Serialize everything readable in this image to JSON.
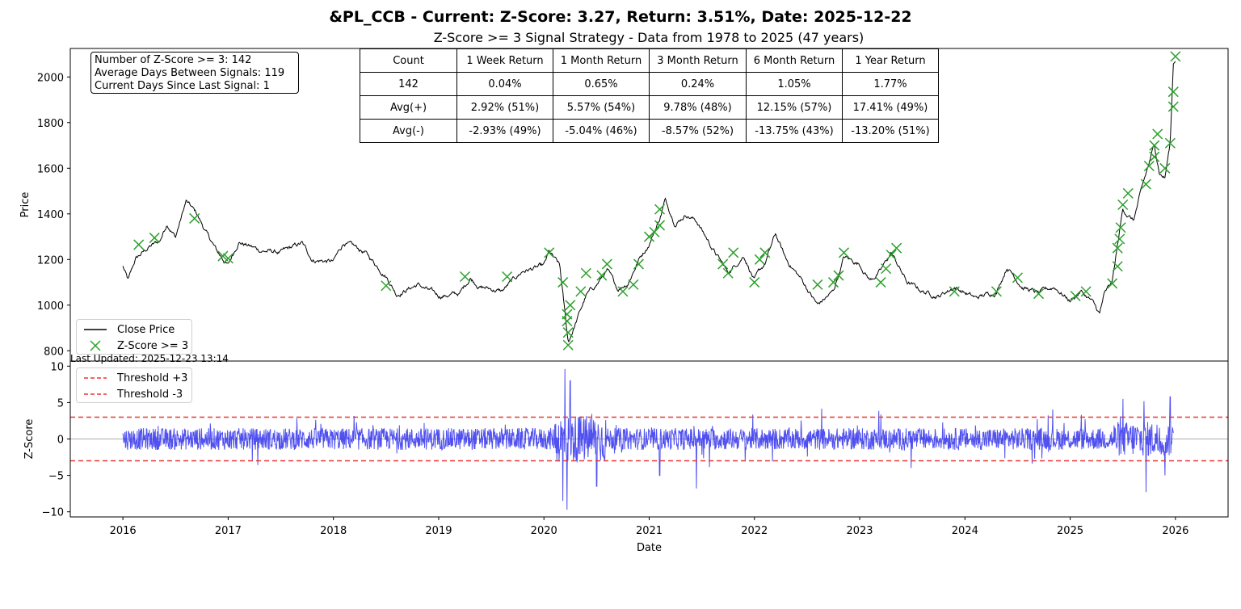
{
  "title": "&PL_CCB - Current: Z-Score: 3.27, Return: 3.51%, Date: 2025-12-22",
  "subtitle": "Z-Score >= 3 Signal Strategy - Data from 1978 to 2025 (47 years)",
  "stats_box": {
    "line1": "Number of Z-Score >= 3: 142",
    "line2": "Average Days Between Signals: 119",
    "line3": "Current Days Since Last Signal: 1"
  },
  "returns_table": {
    "headers": [
      "Count",
      "1 Week Return",
      "1 Month Return",
      "3 Month Return",
      "6 Month Return",
      "1 Year Return"
    ],
    "rows": [
      [
        "142",
        "0.04%",
        "0.65%",
        "0.24%",
        "1.05%",
        "1.77%"
      ],
      [
        "Avg(+)",
        "2.92% (51%)",
        "5.57% (54%)",
        "9.78% (48%)",
        "12.15% (57%)",
        "17.41% (49%)"
      ],
      [
        "Avg(-)",
        "-2.93% (49%)",
        "-5.04% (46%)",
        "-8.57% (52%)",
        "-13.75% (43%)",
        "-13.20% (51%)"
      ]
    ]
  },
  "last_updated": "Last Updated: 2025-12-23 13:14",
  "colors": {
    "price": "#000000",
    "signal": "#2ca02c",
    "zscore": "#3333ee",
    "threshold": "#ee3333",
    "zero": "#bbbbbb"
  },
  "chart_data": [
    {
      "type": "line",
      "ylabel": "Price",
      "xlim": [
        2015.5,
        2026.5
      ],
      "ylim": [
        755,
        2125
      ],
      "yticks": [
        800,
        1000,
        1200,
        1400,
        1600,
        1800,
        2000
      ],
      "legend": [
        "Close Price",
        "Z-Score >= 3"
      ],
      "legend_position": "lower-left",
      "price_anchors": [
        [
          2016.0,
          1170
        ],
        [
          2016.05,
          1105
        ],
        [
          2016.12,
          1200
        ],
        [
          2016.25,
          1255
        ],
        [
          2016.35,
          1280
        ],
        [
          2016.42,
          1360
        ],
        [
          2016.5,
          1300
        ],
        [
          2016.6,
          1455
        ],
        [
          2016.7,
          1400
        ],
        [
          2016.8,
          1310
        ],
        [
          2016.9,
          1230
        ],
        [
          2017.0,
          1175
        ],
        [
          2017.1,
          1280
        ],
        [
          2017.2,
          1260
        ],
        [
          2017.3,
          1240
        ],
        [
          2017.5,
          1230
        ],
        [
          2017.7,
          1270
        ],
        [
          2017.8,
          1200
        ],
        [
          2018.0,
          1190
        ],
        [
          2018.1,
          1275
        ],
        [
          2018.3,
          1230
        ],
        [
          2018.5,
          1130
        ],
        [
          2018.6,
          1050
        ],
        [
          2018.8,
          1090
        ],
        [
          2019.0,
          1040
        ],
        [
          2019.2,
          1050
        ],
        [
          2019.3,
          1120
        ],
        [
          2019.4,
          1080
        ],
        [
          2019.6,
          1060
        ],
        [
          2019.8,
          1150
        ],
        [
          2020.0,
          1170
        ],
        [
          2020.05,
          1230
        ],
        [
          2020.15,
          1170
        ],
        [
          2020.2,
          960
        ],
        [
          2020.23,
          835
        ],
        [
          2020.3,
          920
        ],
        [
          2020.4,
          1040
        ],
        [
          2020.5,
          1090
        ],
        [
          2020.6,
          1150
        ],
        [
          2020.7,
          1070
        ],
        [
          2020.8,
          1100
        ],
        [
          2020.9,
          1200
        ],
        [
          2021.0,
          1270
        ],
        [
          2021.1,
          1380
        ],
        [
          2021.15,
          1460
        ],
        [
          2021.25,
          1360
        ],
        [
          2021.35,
          1400
        ],
        [
          2021.45,
          1370
        ],
        [
          2021.6,
          1250
        ],
        [
          2021.75,
          1140
        ],
        [
          2021.9,
          1220
        ],
        [
          2022.0,
          1110
        ],
        [
          2022.1,
          1180
        ],
        [
          2022.2,
          1310
        ],
        [
          2022.3,
          1200
        ],
        [
          2022.45,
          1110
        ],
        [
          2022.6,
          1000
        ],
        [
          2022.75,
          1060
        ],
        [
          2022.85,
          1210
        ],
        [
          2023.0,
          1180
        ],
        [
          2023.1,
          1110
        ],
        [
          2023.2,
          1150
        ],
        [
          2023.3,
          1230
        ],
        [
          2023.45,
          1100
        ],
        [
          2023.6,
          1060
        ],
        [
          2023.75,
          1040
        ],
        [
          2023.9,
          1080
        ],
        [
          2024.1,
          1030
        ],
        [
          2024.3,
          1060
        ],
        [
          2024.4,
          1170
        ],
        [
          2024.55,
          1080
        ],
        [
          2024.7,
          1050
        ],
        [
          2024.85,
          1080
        ],
        [
          2025.0,
          1020
        ],
        [
          2025.1,
          1060
        ],
        [
          2025.2,
          1020
        ],
        [
          2025.28,
          960
        ],
        [
          2025.32,
          1040
        ],
        [
          2025.4,
          1100
        ],
        [
          2025.45,
          1260
        ],
        [
          2025.5,
          1420
        ],
        [
          2025.6,
          1370
        ],
        [
          2025.7,
          1540
        ],
        [
          2025.8,
          1700
        ],
        [
          2025.85,
          1580
        ],
        [
          2025.9,
          1560
        ],
        [
          2025.95,
          1710
        ],
        [
          2025.98,
          2060
        ],
        [
          2026.0,
          2080
        ]
      ],
      "signals": [
        [
          2016.15,
          1265
        ],
        [
          2016.3,
          1295
        ],
        [
          2016.68,
          1380
        ],
        [
          2016.95,
          1215
        ],
        [
          2017.0,
          1205
        ],
        [
          2018.5,
          1085
        ],
        [
          2019.25,
          1125
        ],
        [
          2019.65,
          1125
        ],
        [
          2020.05,
          1230
        ],
        [
          2020.18,
          1100
        ],
        [
          2020.22,
          960
        ],
        [
          2020.22,
          930
        ],
        [
          2020.23,
          880
        ],
        [
          2020.23,
          825
        ],
        [
          2020.25,
          1000
        ],
        [
          2020.35,
          1060
        ],
        [
          2020.4,
          1140
        ],
        [
          2020.55,
          1130
        ],
        [
          2020.6,
          1180
        ],
        [
          2020.75,
          1060
        ],
        [
          2020.85,
          1090
        ],
        [
          2020.9,
          1180
        ],
        [
          2021.0,
          1300
        ],
        [
          2021.05,
          1320
        ],
        [
          2021.1,
          1350
        ],
        [
          2021.1,
          1420
        ],
        [
          2021.7,
          1180
        ],
        [
          2021.75,
          1140
        ],
        [
          2021.8,
          1230
        ],
        [
          2022.0,
          1100
        ],
        [
          2022.05,
          1200
        ],
        [
          2022.1,
          1230
        ],
        [
          2022.6,
          1090
        ],
        [
          2022.75,
          1100
        ],
        [
          2022.8,
          1130
        ],
        [
          2022.85,
          1230
        ],
        [
          2023.2,
          1100
        ],
        [
          2023.25,
          1160
        ],
        [
          2023.3,
          1220
        ],
        [
          2023.35,
          1250
        ],
        [
          2023.9,
          1060
        ],
        [
          2024.3,
          1060
        ],
        [
          2024.5,
          1120
        ],
        [
          2024.7,
          1050
        ],
        [
          2025.05,
          1040
        ],
        [
          2025.15,
          1060
        ],
        [
          2025.4,
          1095
        ],
        [
          2025.45,
          1170
        ],
        [
          2025.45,
          1250
        ],
        [
          2025.47,
          1290
        ],
        [
          2025.48,
          1340
        ],
        [
          2025.5,
          1440
        ],
        [
          2025.55,
          1490
        ],
        [
          2025.72,
          1530
        ],
        [
          2025.75,
          1610
        ],
        [
          2025.8,
          1650
        ],
        [
          2025.8,
          1700
        ],
        [
          2025.83,
          1750
        ],
        [
          2025.9,
          1600
        ],
        [
          2025.95,
          1710
        ],
        [
          2025.98,
          1870
        ],
        [
          2025.98,
          1935
        ],
        [
          2026.0,
          2090
        ]
      ]
    },
    {
      "type": "line",
      "xlabel": "Date",
      "ylabel": "Z-Score",
      "xlim": [
        2015.5,
        2026.5
      ],
      "ylim": [
        -10.7,
        10.7
      ],
      "xticks": [
        2016,
        2017,
        2018,
        2019,
        2020,
        2021,
        2022,
        2023,
        2024,
        2025,
        2026
      ],
      "yticks": [
        -10,
        -5,
        0,
        5,
        10
      ],
      "thresholds": [
        3,
        -3
      ],
      "legend": [
        "Threshold +3",
        "Threshold -3"
      ],
      "legend_position": "top-left",
      "z_range": [
        -9.8,
        9.6
      ],
      "z_spikes": [
        [
          2020.2,
          9.6
        ],
        [
          2020.22,
          -9.7
        ],
        [
          2020.25,
          8.0
        ],
        [
          2020.18,
          -8.5
        ],
        [
          2020.5,
          6.0
        ],
        [
          2020.5,
          -6.5
        ],
        [
          2021.1,
          6.0
        ],
        [
          2021.1,
          -5.0
        ],
        [
          2021.45,
          -6.8
        ],
        [
          2025.5,
          5.5
        ],
        [
          2025.7,
          5.2
        ],
        [
          2025.72,
          -7.3
        ],
        [
          2025.95,
          5.8
        ],
        [
          2025.9,
          -5.0
        ]
      ]
    }
  ]
}
